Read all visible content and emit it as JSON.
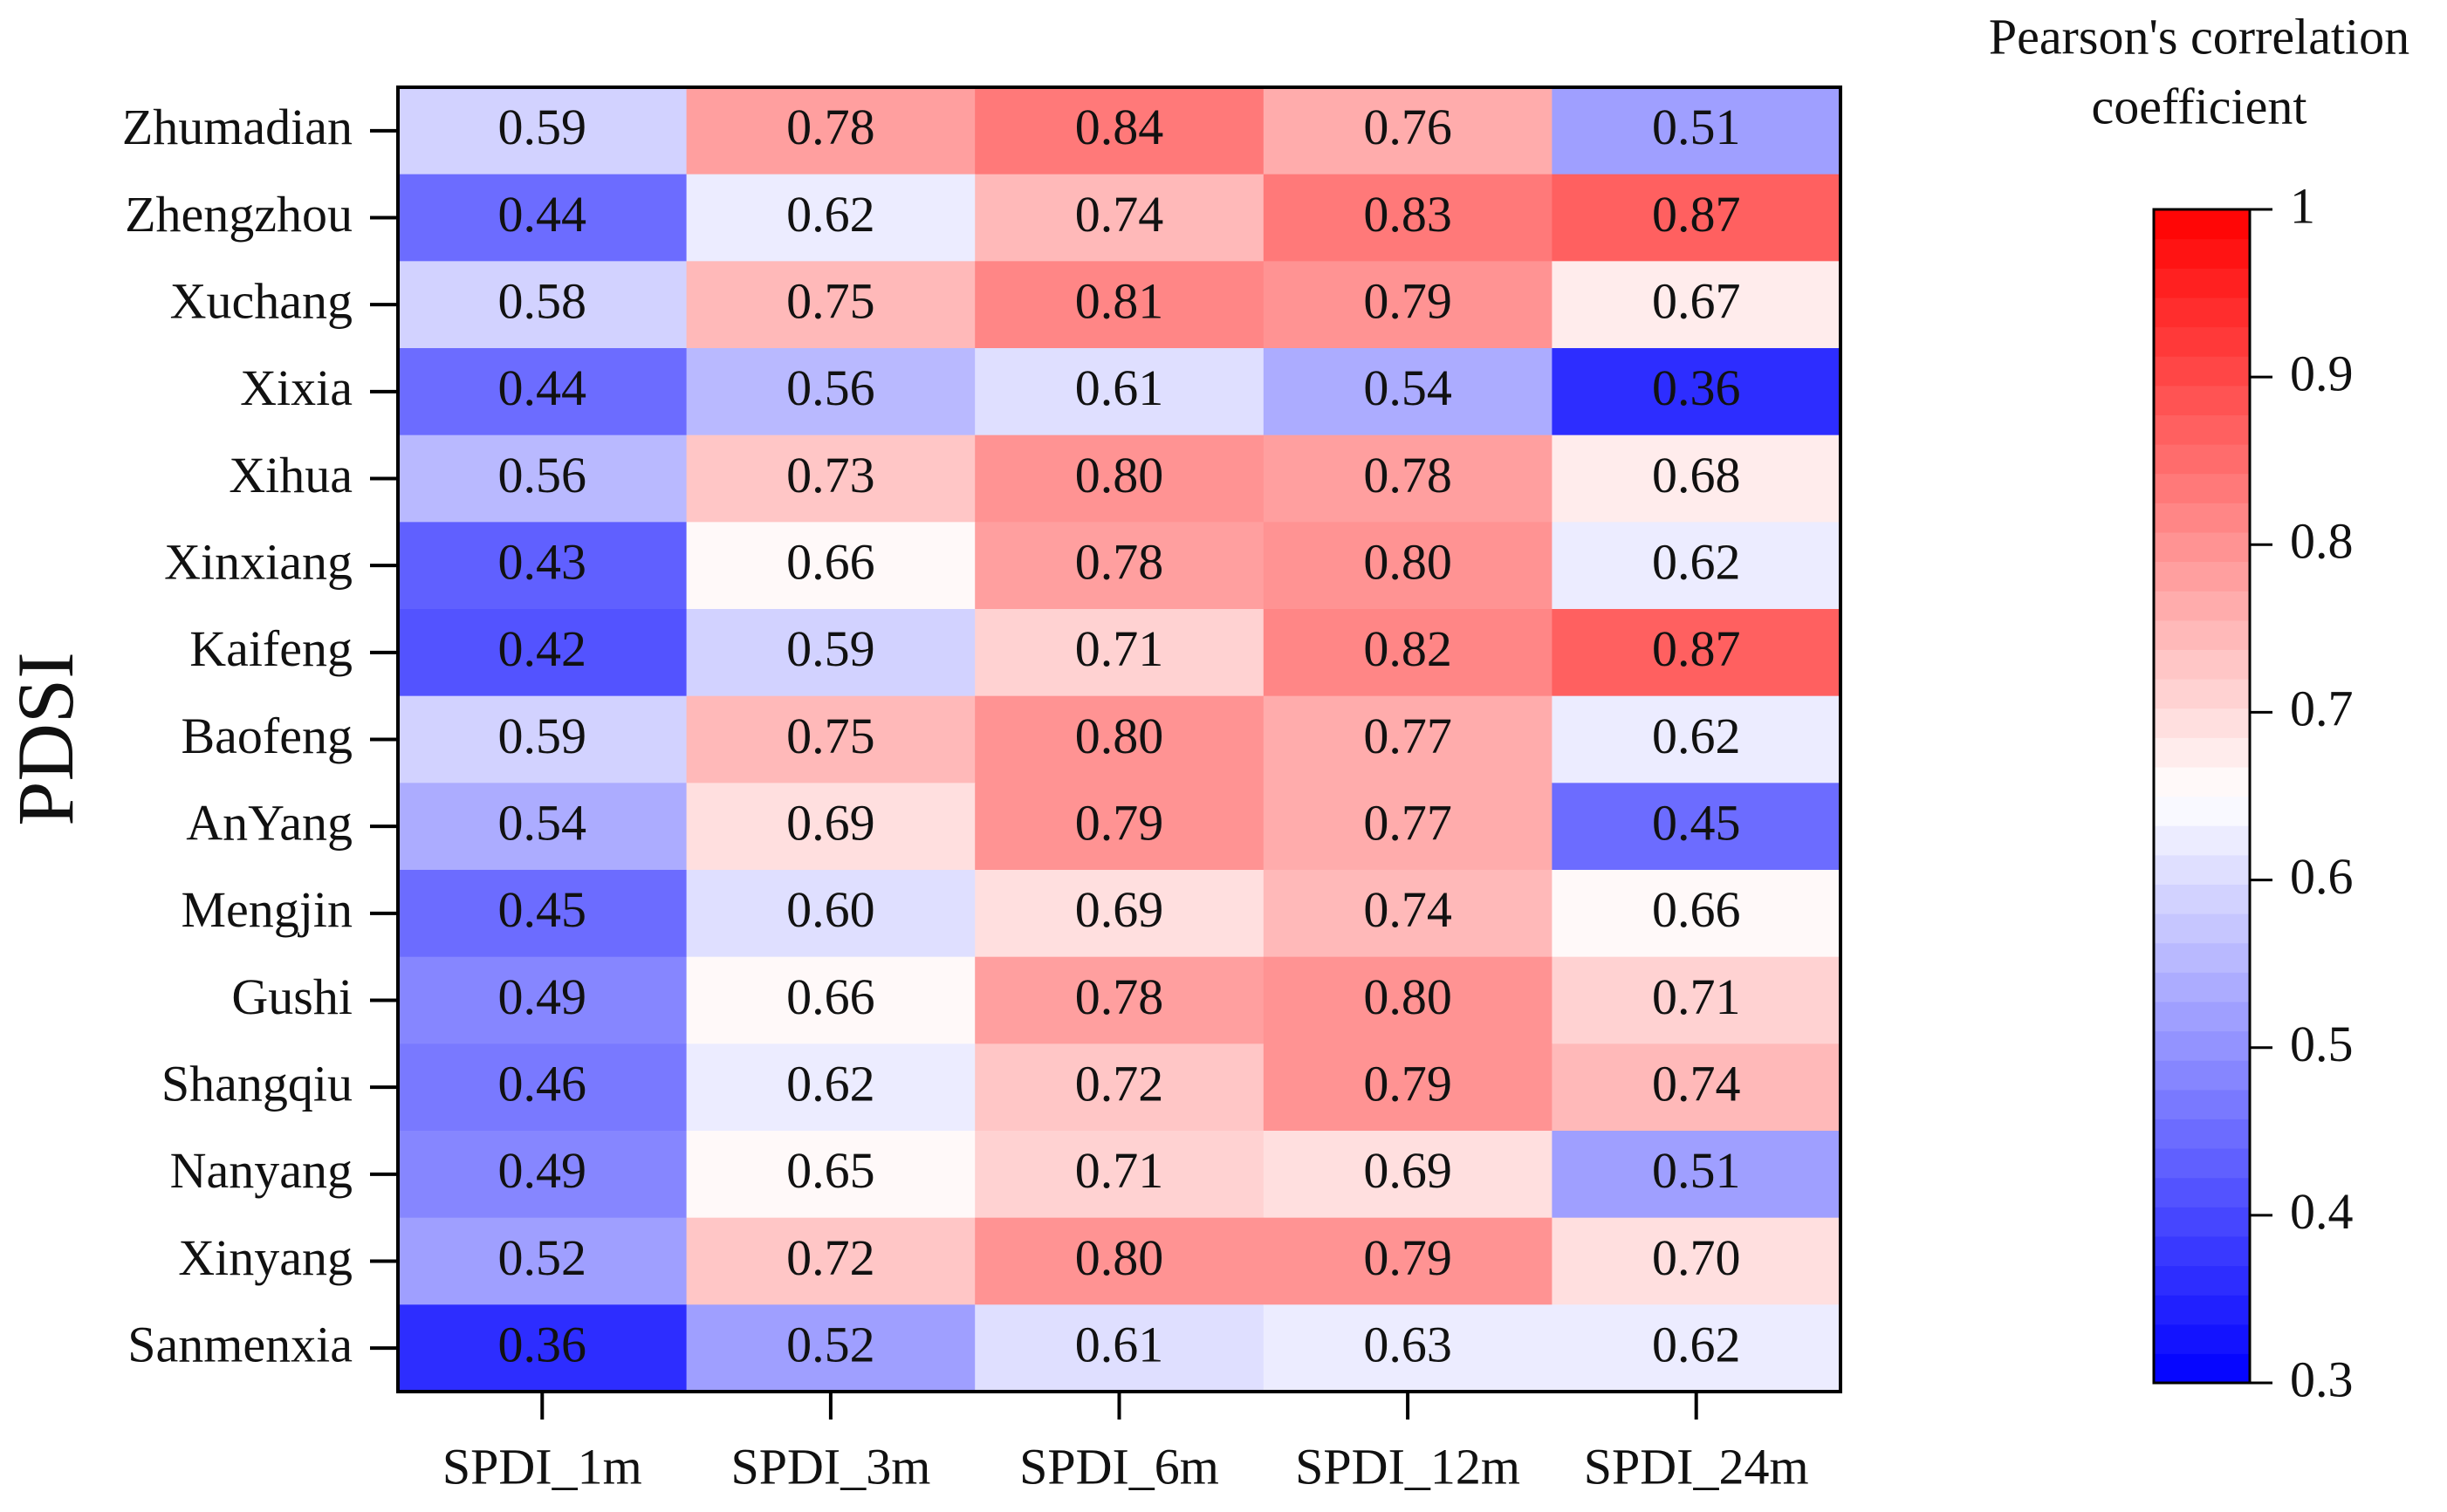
{
  "chart_data": {
    "type": "heatmap",
    "ylabel": "PDSI",
    "columns": [
      "SPDI_1m",
      "SPDI_3m",
      "SPDI_6m",
      "SPDI_12m",
      "SPDI_24m"
    ],
    "rows": [
      "Zhumadian",
      "Zhengzhou",
      "Xuchang",
      "Xixia",
      "Xihua",
      "Xinxiang",
      "Kaifeng",
      "Baofeng",
      "AnYang",
      "Mengjin",
      "Gushi",
      "Shangqiu",
      "Nanyang",
      "Xinyang",
      "Sanmenxia"
    ],
    "values": [
      [
        0.59,
        0.78,
        0.84,
        0.76,
        0.51
      ],
      [
        0.44,
        0.62,
        0.74,
        0.83,
        0.87
      ],
      [
        0.58,
        0.75,
        0.81,
        0.79,
        0.67
      ],
      [
        0.44,
        0.56,
        0.61,
        0.54,
        0.36
      ],
      [
        0.56,
        0.73,
        0.8,
        0.78,
        0.68
      ],
      [
        0.43,
        0.66,
        0.78,
        0.8,
        0.62
      ],
      [
        0.42,
        0.59,
        0.71,
        0.82,
        0.87
      ],
      [
        0.59,
        0.75,
        0.8,
        0.77,
        0.62
      ],
      [
        0.54,
        0.69,
        0.79,
        0.77,
        0.45
      ],
      [
        0.45,
        0.6,
        0.69,
        0.74,
        0.66
      ],
      [
        0.49,
        0.66,
        0.78,
        0.8,
        0.71
      ],
      [
        0.46,
        0.62,
        0.72,
        0.79,
        0.74
      ],
      [
        0.49,
        0.65,
        0.71,
        0.69,
        0.51
      ],
      [
        0.52,
        0.72,
        0.8,
        0.79,
        0.7
      ],
      [
        0.36,
        0.52,
        0.61,
        0.63,
        0.62
      ]
    ],
    "labels": [
      [
        "0.59",
        "0.78",
        "0.84",
        "0.76",
        "0.51"
      ],
      [
        "0.44",
        "0.62",
        "0.74",
        "0.83",
        "0.87"
      ],
      [
        "0.58",
        "0.75",
        "0.81",
        "0.79",
        "0.67"
      ],
      [
        "0.44",
        "0.56",
        "0.61",
        "0.54",
        "0.36"
      ],
      [
        "0.56",
        "0.73",
        "0.80",
        "0.78",
        "0.68"
      ],
      [
        "0.43",
        "0.66",
        "0.78",
        "0.80",
        "0.62"
      ],
      [
        "0.42",
        "0.59",
        "0.71",
        "0.82",
        "0.87"
      ],
      [
        "0.59",
        "0.75",
        "0.80",
        "0.77",
        "0.62"
      ],
      [
        "0.54",
        "0.69",
        "0.79",
        "0.77",
        "0.45"
      ],
      [
        "0.45",
        "0.60",
        "0.69",
        "0.74",
        "0.66"
      ],
      [
        "0.49",
        "0.66",
        "0.78",
        "0.80",
        "0.71"
      ],
      [
        "0.46",
        "0.62",
        "0.72",
        "0.79",
        "0.74"
      ],
      [
        "0.49",
        "0.65",
        "0.71",
        "0.69",
        "0.51"
      ],
      [
        "0.52",
        "0.72",
        "0.80",
        "0.79",
        "0.70"
      ],
      [
        "0.36",
        "0.52",
        "0.61",
        "0.63",
        "0.62"
      ]
    ],
    "colorbar": {
      "title_lines": [
        "Pearson's correlation",
        "coefficient"
      ],
      "range": [
        0.3,
        1.0
      ],
      "midpoint": 0.65,
      "ticks": [
        0.3,
        0.4,
        0.5,
        0.6,
        0.7,
        0.8,
        0.9,
        1.0
      ],
      "tick_labels": [
        "0.3",
        "0.4",
        "0.5",
        "0.6",
        "0.7",
        "0.8",
        "0.9",
        "1"
      ],
      "levels": 40,
      "colors": {
        "low": "#0000ff",
        "mid": "#ffffff",
        "high": "#ff0000"
      }
    }
  }
}
